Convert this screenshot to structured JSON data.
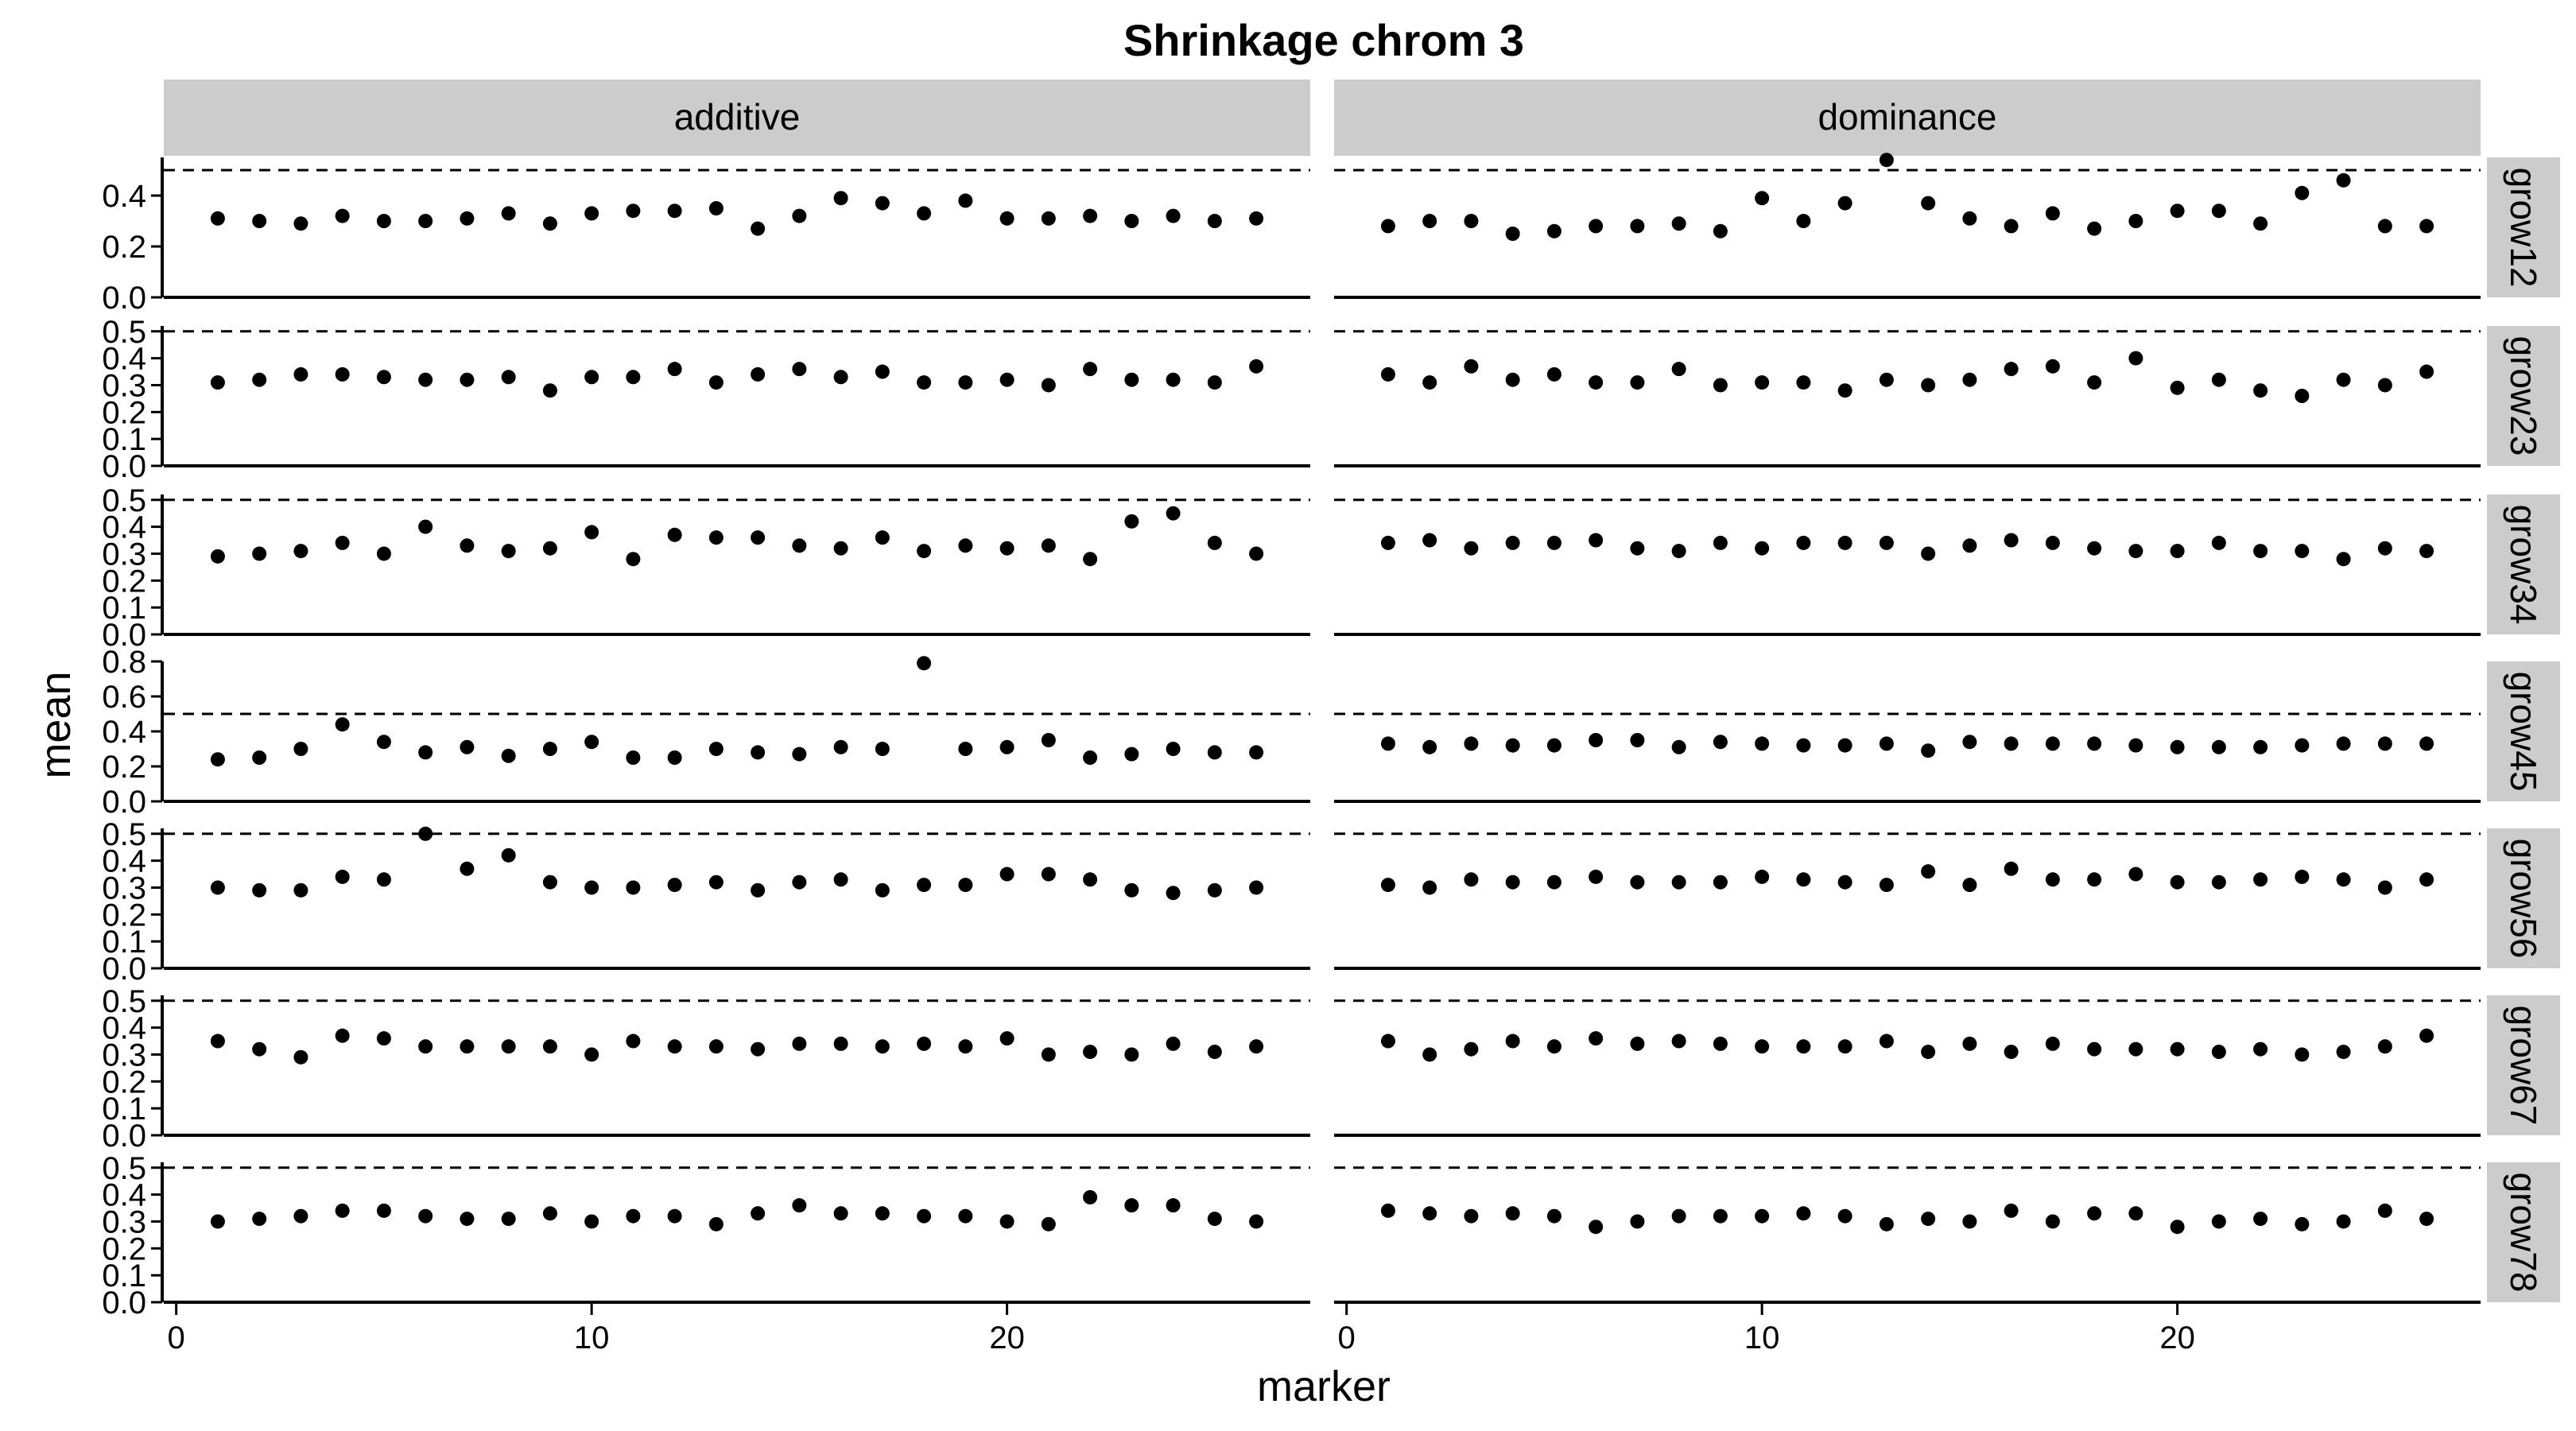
{
  "chart_data": {
    "type": "scatter",
    "title": "Shrinkage chrom 3",
    "xlabel": "marker",
    "ylabel": "mean",
    "facet_columns": [
      "additive",
      "dominance"
    ],
    "facet_rows": [
      "grow12",
      "grow23",
      "grow34",
      "grow45",
      "grow56",
      "grow67",
      "grow78"
    ],
    "x": [
      1,
      2,
      3,
      4,
      5,
      6,
      7,
      8,
      9,
      10,
      11,
      12,
      13,
      14,
      15,
      16,
      17,
      18,
      19,
      20,
      21,
      22,
      23,
      24,
      25,
      26
    ],
    "xlim": [
      -0.3,
      27.3
    ],
    "xticks": [
      0,
      10,
      20
    ],
    "reference_line": 0.5,
    "reference_line_style": "dashed",
    "point_color": "#000000",
    "strip_color": "#cccccc",
    "grid": false,
    "panels": [
      {
        "row": "grow12",
        "ylim": [
          0,
          0.55
        ],
        "yticks": [
          "0.0",
          "0.2",
          "0.4"
        ],
        "additive": [
          0.31,
          0.3,
          0.29,
          0.32,
          0.3,
          0.3,
          0.31,
          0.33,
          0.29,
          0.33,
          0.34,
          0.34,
          0.35,
          0.27,
          0.32,
          0.39,
          0.37,
          0.33,
          0.38,
          0.31,
          0.31,
          0.32,
          0.3,
          0.32,
          0.3,
          0.31
        ],
        "dominance": [
          0.28,
          0.3,
          0.3,
          0.25,
          0.26,
          0.28,
          0.28,
          0.29,
          0.26,
          0.39,
          0.3,
          0.37,
          0.54,
          0.37,
          0.31,
          0.28,
          0.33,
          0.27,
          0.3,
          0.34,
          0.34,
          0.29,
          0.41,
          0.46,
          0.28,
          0.28
        ]
      },
      {
        "row": "grow23",
        "ylim": [
          0,
          0.52
        ],
        "yticks": [
          "0.0",
          "0.1",
          "0.2",
          "0.3",
          "0.4",
          "0.5"
        ],
        "additive": [
          0.31,
          0.32,
          0.34,
          0.34,
          0.33,
          0.32,
          0.32,
          0.33,
          0.28,
          0.33,
          0.33,
          0.36,
          0.31,
          0.34,
          0.36,
          0.33,
          0.35,
          0.31,
          0.31,
          0.32,
          0.3,
          0.36,
          0.32,
          0.32,
          0.31,
          0.37
        ],
        "dominance": [
          0.34,
          0.31,
          0.37,
          0.32,
          0.34,
          0.31,
          0.31,
          0.36,
          0.3,
          0.31,
          0.31,
          0.28,
          0.32,
          0.3,
          0.32,
          0.36,
          0.37,
          0.31,
          0.4,
          0.29,
          0.32,
          0.28,
          0.26,
          0.32,
          0.3,
          0.35
        ]
      },
      {
        "row": "grow34",
        "ylim": [
          0,
          0.52
        ],
        "yticks": [
          "0.0",
          "0.1",
          "0.2",
          "0.3",
          "0.4",
          "0.5"
        ],
        "additive": [
          0.29,
          0.3,
          0.31,
          0.34,
          0.3,
          0.4,
          0.33,
          0.31,
          0.32,
          0.38,
          0.28,
          0.37,
          0.36,
          0.36,
          0.33,
          0.32,
          0.36,
          0.31,
          0.33,
          0.32,
          0.33,
          0.28,
          0.42,
          0.45,
          0.34,
          0.3
        ],
        "dominance": [
          0.34,
          0.35,
          0.32,
          0.34,
          0.34,
          0.35,
          0.32,
          0.31,
          0.34,
          0.32,
          0.34,
          0.34,
          0.34,
          0.3,
          0.33,
          0.35,
          0.34,
          0.32,
          0.31,
          0.31,
          0.34,
          0.31,
          0.31,
          0.28,
          0.32,
          0.31
        ]
      },
      {
        "row": "grow45",
        "ylim": [
          0,
          0.8
        ],
        "yticks": [
          "0.0",
          "0.2",
          "0.4",
          "0.6",
          "0.8"
        ],
        "additive": [
          0.24,
          0.25,
          0.3,
          0.44,
          0.34,
          0.28,
          0.31,
          0.26,
          0.3,
          0.34,
          0.25,
          0.25,
          0.3,
          0.28,
          0.27,
          0.31,
          0.3,
          0.79,
          0.3,
          0.31,
          0.35,
          0.25,
          0.27,
          0.3,
          0.28,
          0.28
        ],
        "dominance": [
          0.33,
          0.31,
          0.33,
          0.32,
          0.32,
          0.35,
          0.35,
          0.31,
          0.34,
          0.33,
          0.32,
          0.32,
          0.33,
          0.29,
          0.34,
          0.33,
          0.33,
          0.33,
          0.32,
          0.31,
          0.31,
          0.31,
          0.32,
          0.33,
          0.33,
          0.33
        ]
      },
      {
        "row": "grow56",
        "ylim": [
          0,
          0.52
        ],
        "yticks": [
          "0.0",
          "0.1",
          "0.2",
          "0.3",
          "0.4",
          "0.5"
        ],
        "additive": [
          0.3,
          0.29,
          0.29,
          0.34,
          0.33,
          0.5,
          0.37,
          0.42,
          0.32,
          0.3,
          0.3,
          0.31,
          0.32,
          0.29,
          0.32,
          0.33,
          0.29,
          0.31,
          0.31,
          0.35,
          0.35,
          0.33,
          0.29,
          0.28,
          0.29,
          0.3
        ],
        "dominance": [
          0.31,
          0.3,
          0.33,
          0.32,
          0.32,
          0.34,
          0.32,
          0.32,
          0.32,
          0.34,
          0.33,
          0.32,
          0.31,
          0.36,
          0.31,
          0.37,
          0.33,
          0.33,
          0.35,
          0.32,
          0.32,
          0.33,
          0.34,
          0.33,
          0.3,
          0.33
        ]
      },
      {
        "row": "grow67",
        "ylim": [
          0,
          0.52
        ],
        "yticks": [
          "0.0",
          "0.1",
          "0.2",
          "0.3",
          "0.4",
          "0.5"
        ],
        "additive": [
          0.35,
          0.32,
          0.29,
          0.37,
          0.36,
          0.33,
          0.33,
          0.33,
          0.33,
          0.3,
          0.35,
          0.33,
          0.33,
          0.32,
          0.34,
          0.34,
          0.33,
          0.34,
          0.33,
          0.36,
          0.3,
          0.31,
          0.3,
          0.34,
          0.31,
          0.33
        ],
        "dominance": [
          0.35,
          0.3,
          0.32,
          0.35,
          0.33,
          0.36,
          0.34,
          0.35,
          0.34,
          0.33,
          0.33,
          0.33,
          0.35,
          0.31,
          0.34,
          0.31,
          0.34,
          0.32,
          0.32,
          0.32,
          0.31,
          0.32,
          0.3,
          0.31,
          0.33,
          0.37
        ]
      },
      {
        "row": "grow78",
        "ylim": [
          0,
          0.52
        ],
        "yticks": [
          "0.0",
          "0.1",
          "0.2",
          "0.3",
          "0.4",
          "0.5"
        ],
        "additive": [
          0.3,
          0.31,
          0.32,
          0.34,
          0.34,
          0.32,
          0.31,
          0.31,
          0.33,
          0.3,
          0.32,
          0.32,
          0.29,
          0.33,
          0.36,
          0.33,
          0.33,
          0.32,
          0.32,
          0.3,
          0.29,
          0.39,
          0.36,
          0.36,
          0.31,
          0.3
        ],
        "dominance": [
          0.34,
          0.33,
          0.32,
          0.33,
          0.32,
          0.28,
          0.3,
          0.32,
          0.32,
          0.32,
          0.33,
          0.32,
          0.29,
          0.31,
          0.3,
          0.34,
          0.3,
          0.33,
          0.33,
          0.28,
          0.3,
          0.31,
          0.29,
          0.3,
          0.34,
          0.31
        ]
      }
    ]
  }
}
